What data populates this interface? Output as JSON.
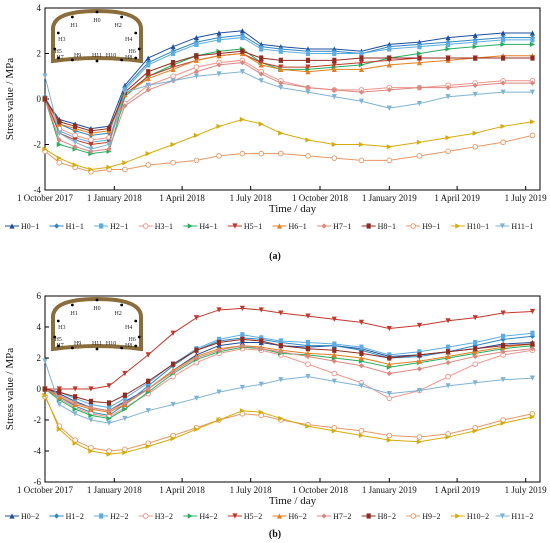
{
  "chart_data": [
    {
      "type": "line",
      "panel": "(a)",
      "xlabel": "Time / day",
      "ylabel": "Stress value / MPa",
      "ylim": [
        -4,
        4
      ],
      "yticks": [
        "4",
        "2",
        "0",
        "-2",
        "-4"
      ],
      "xticks": [
        "1 October 2017",
        "1 January 2018",
        "1 April 2018",
        "1 July 2018",
        "1 October 2018",
        "1 January 2019",
        "1 April 2019",
        "1 July 2019"
      ],
      "x": [
        "2017-10-01",
        "2017-10-20",
        "2017-11-10",
        "2017-12-01",
        "2017-12-25",
        "2018-01-15",
        "2018-02-15",
        "2018-03-20",
        "2018-04-20",
        "2018-05-20",
        "2018-06-20",
        "2018-07-15",
        "2018-08-10",
        "2018-09-15",
        "2018-10-20",
        "2018-11-25",
        "2019-01-01",
        "2019-02-10",
        "2019-03-20",
        "2019-04-25",
        "2019-06-01",
        "2019-07-10"
      ],
      "legend_position": "bottom",
      "inset_labels": [
        "H0",
        "H1",
        "H2",
        "H3",
        "H4",
        "H5",
        "H6",
        "H7",
        "H8",
        "H9",
        "H10",
        "H11"
      ],
      "series": [
        {
          "name": "H0−1",
          "color": "#1f4e9c",
          "values": [
            0.0,
            -0.9,
            -1.1,
            -1.3,
            -1.2,
            0.6,
            1.8,
            2.3,
            2.7,
            2.9,
            3.0,
            2.4,
            2.3,
            2.2,
            2.2,
            2.1,
            2.4,
            2.5,
            2.7,
            2.8,
            2.9,
            2.9
          ]
        },
        {
          "name": "H1−1",
          "color": "#2e86c1",
          "values": [
            0.1,
            -1.1,
            -1.4,
            -1.6,
            -1.5,
            0.5,
            1.6,
            2.1,
            2.5,
            2.7,
            2.8,
            2.3,
            2.2,
            2.1,
            2.1,
            2.0,
            2.3,
            2.4,
            2.5,
            2.6,
            2.7,
            2.7
          ]
        },
        {
          "name": "H2−1",
          "color": "#5dade2",
          "values": [
            0.0,
            -1.4,
            -1.7,
            -1.9,
            -1.8,
            0.4,
            1.5,
            2.0,
            2.4,
            2.6,
            2.7,
            2.2,
            2.1,
            2.0,
            2.0,
            2.0,
            2.2,
            2.3,
            2.4,
            2.5,
            2.6,
            2.6
          ]
        },
        {
          "name": "H3−1",
          "color": "#f1948a",
          "values": [
            0.0,
            -1.3,
            -1.6,
            -1.8,
            -1.7,
            -0.2,
            0.6,
            1.0,
            1.4,
            1.6,
            1.7,
            1.2,
            0.8,
            0.5,
            0.4,
            0.4,
            0.5,
            0.5,
            0.6,
            0.7,
            0.8,
            0.8
          ]
        },
        {
          "name": "H4−1",
          "color": "#27ae60",
          "values": [
            0.0,
            -2.0,
            -2.2,
            -2.4,
            -2.3,
            0.1,
            1.0,
            1.5,
            1.9,
            2.1,
            2.2,
            1.6,
            1.3,
            1.3,
            1.4,
            1.5,
            1.8,
            2.0,
            2.2,
            2.3,
            2.4,
            2.4
          ]
        },
        {
          "name": "H5−1",
          "color": "#c0392b",
          "values": [
            0.0,
            -1.5,
            -1.8,
            -2.0,
            -1.9,
            0.2,
            1.0,
            1.4,
            1.7,
            1.9,
            2.0,
            1.6,
            1.4,
            1.4,
            1.5,
            1.6,
            1.7,
            1.8,
            1.8,
            1.8,
            1.8,
            1.8
          ]
        },
        {
          "name": "H6−1",
          "color": "#e67e22",
          "values": [
            0.0,
            -1.1,
            -1.3,
            -1.5,
            -1.4,
            0.2,
            0.9,
            1.3,
            1.7,
            1.9,
            2.0,
            1.5,
            1.3,
            1.2,
            1.3,
            1.3,
            1.5,
            1.6,
            1.7,
            1.8,
            1.9,
            1.9
          ]
        },
        {
          "name": "H7−1",
          "color": "#d98880",
          "values": [
            0.0,
            -1.8,
            -2.1,
            -2.3,
            -2.2,
            -0.3,
            0.4,
            0.8,
            1.2,
            1.5,
            1.6,
            1.1,
            0.7,
            0.5,
            0.4,
            0.3,
            0.4,
            0.5,
            0.5,
            0.6,
            0.7,
            0.7
          ]
        },
        {
          "name": "H8−1",
          "color": "#922b21",
          "values": [
            0.0,
            -1.0,
            -1.2,
            -1.4,
            -1.3,
            0.3,
            1.2,
            1.6,
            1.9,
            2.0,
            2.1,
            1.8,
            1.7,
            1.7,
            1.7,
            1.8,
            1.8,
            1.8,
            1.8,
            1.8,
            1.8,
            1.8
          ]
        },
        {
          "name": "H9−1",
          "color": "#e59866",
          "values": [
            -2.3,
            -2.8,
            -3.0,
            -3.2,
            -3.1,
            -3.1,
            -2.9,
            -2.8,
            -2.7,
            -2.5,
            -2.4,
            -2.4,
            -2.4,
            -2.5,
            -2.6,
            -2.7,
            -2.7,
            -2.5,
            -2.3,
            -2.1,
            -1.9,
            -1.6
          ]
        },
        {
          "name": "H10−1",
          "color": "#d4ac0d",
          "values": [
            -2.2,
            -2.6,
            -2.9,
            -3.1,
            -3.0,
            -2.8,
            -2.4,
            -2.0,
            -1.6,
            -1.2,
            -0.9,
            -1.1,
            -1.5,
            -1.8,
            -2.0,
            -2.0,
            -2.1,
            -1.9,
            -1.7,
            -1.5,
            -1.2,
            -1.0
          ]
        },
        {
          "name": "H11−1",
          "color": "#7fb3d5",
          "values": [
            1.0,
            -1.5,
            -1.9,
            -2.2,
            -2.0,
            0.3,
            0.6,
            0.8,
            1.0,
            1.1,
            1.2,
            0.8,
            0.5,
            0.3,
            0.1,
            -0.1,
            -0.4,
            -0.2,
            0.1,
            0.2,
            0.3,
            0.3
          ]
        }
      ]
    },
    {
      "type": "line",
      "panel": "(b)",
      "xlabel": "Time / day",
      "ylabel": "Stress value / MPa",
      "ylim": [
        -6,
        6
      ],
      "yticks": [
        "6",
        "4",
        "2",
        "0",
        "-2",
        "-4",
        "-6"
      ],
      "xticks": [
        "1 October 2017",
        "1 January 2018",
        "1 April 2018",
        "1 July 2018",
        "1 October 2018",
        "1 January 2019",
        "1 April 2019",
        "1 July 2019"
      ],
      "x": [
        "2017-10-01",
        "2017-10-20",
        "2017-11-10",
        "2017-12-01",
        "2017-12-25",
        "2018-01-15",
        "2018-02-15",
        "2018-03-20",
        "2018-04-20",
        "2018-05-20",
        "2018-06-20",
        "2018-07-15",
        "2018-08-10",
        "2018-09-15",
        "2018-10-20",
        "2018-11-25",
        "2019-01-01",
        "2019-02-10",
        "2019-03-20",
        "2019-04-25",
        "2019-06-01",
        "2019-07-10"
      ],
      "legend_position": "bottom",
      "inset_labels": [
        "H0",
        "H1",
        "H2",
        "H3",
        "H4",
        "H5",
        "H6",
        "H7",
        "H8",
        "H9",
        "H10",
        "H11"
      ],
      "series": [
        {
          "name": "H0−2",
          "color": "#1f4e9c",
          "values": [
            0.0,
            -0.3,
            -0.8,
            -1.2,
            -1.4,
            -0.8,
            0.0,
            1.2,
            2.2,
            2.8,
            3.0,
            3.0,
            2.8,
            2.7,
            2.8,
            2.6,
            2.1,
            2.2,
            2.4,
            2.6,
            2.9,
            3.0
          ]
        },
        {
          "name": "H1−2",
          "color": "#2e86c1",
          "values": [
            0.0,
            -0.5,
            -1.1,
            -1.5,
            -1.7,
            -1.0,
            0.2,
            1.5,
            2.5,
            3.1,
            3.3,
            3.2,
            3.0,
            2.8,
            2.8,
            2.5,
            2.0,
            2.1,
            2.4,
            2.8,
            3.2,
            3.4
          ]
        },
        {
          "name": "H2−2",
          "color": "#5dade2",
          "values": [
            0.0,
            -0.2,
            -0.6,
            -1.0,
            -1.2,
            -0.6,
            0.4,
            1.6,
            2.6,
            3.2,
            3.5,
            3.3,
            3.1,
            3.0,
            2.9,
            2.7,
            2.2,
            2.4,
            2.7,
            3.0,
            3.4,
            3.6
          ]
        },
        {
          "name": "H3−2",
          "color": "#f1948a",
          "values": [
            0.0,
            -0.6,
            -1.2,
            -1.6,
            -1.8,
            -1.2,
            -0.3,
            0.8,
            1.7,
            2.3,
            2.6,
            2.5,
            2.2,
            1.6,
            1.0,
            0.4,
            -0.6,
            -0.1,
            0.8,
            1.6,
            2.2,
            2.5
          ]
        },
        {
          "name": "H4−2",
          "color": "#27ae60",
          "values": [
            0.0,
            -0.7,
            -1.3,
            -1.7,
            -1.9,
            -1.3,
            -0.2,
            1.0,
            1.9,
            2.4,
            2.7,
            2.6,
            2.3,
            2.2,
            2.0,
            1.8,
            1.4,
            1.7,
            2.0,
            2.3,
            2.6,
            2.8
          ]
        },
        {
          "name": "H5−2",
          "color": "#c0392b",
          "values": [
            0.0,
            0.0,
            0.0,
            0.0,
            0.2,
            1.0,
            2.2,
            3.6,
            4.6,
            5.1,
            5.2,
            5.1,
            4.9,
            4.7,
            4.5,
            4.3,
            3.9,
            4.1,
            4.4,
            4.6,
            4.9,
            5.0
          ]
        },
        {
          "name": "H6−2",
          "color": "#e67e22",
          "values": [
            0.0,
            -0.5,
            -1.0,
            -1.3,
            -1.5,
            -1.0,
            0.0,
            1.2,
            2.1,
            2.6,
            2.8,
            2.7,
            2.5,
            2.3,
            2.2,
            2.0,
            1.6,
            1.8,
            2.1,
            2.4,
            2.7,
            2.9
          ]
        },
        {
          "name": "H7−2",
          "color": "#d98880",
          "values": [
            0.0,
            -0.4,
            -0.9,
            -1.2,
            -1.4,
            -0.9,
            0.0,
            1.1,
            2.0,
            2.5,
            2.8,
            2.6,
            2.4,
            2.1,
            1.8,
            1.5,
            1.0,
            1.3,
            1.7,
            2.1,
            2.4,
            2.6
          ]
        },
        {
          "name": "H8−2",
          "color": "#922b21",
          "values": [
            0.0,
            -0.2,
            -0.5,
            -0.8,
            -0.9,
            -0.4,
            0.5,
            1.6,
            2.5,
            3.0,
            3.2,
            3.1,
            2.8,
            2.6,
            2.5,
            2.3,
            2.0,
            2.2,
            2.4,
            2.6,
            2.8,
            2.9
          ]
        },
        {
          "name": "H9−2",
          "color": "#e59866",
          "values": [
            -0.5,
            -2.4,
            -3.3,
            -3.8,
            -4.0,
            -3.9,
            -3.5,
            -3.0,
            -2.5,
            -2.0,
            -1.6,
            -1.7,
            -2.0,
            -2.3,
            -2.5,
            -2.7,
            -3.0,
            -3.1,
            -2.9,
            -2.5,
            -2.0,
            -1.6
          ]
        },
        {
          "name": "H10−2",
          "color": "#d4ac0d",
          "values": [
            -0.4,
            -2.6,
            -3.5,
            -4.0,
            -4.2,
            -4.1,
            -3.7,
            -3.2,
            -2.6,
            -2.0,
            -1.4,
            -1.5,
            -1.9,
            -2.4,
            -2.7,
            -3.0,
            -3.3,
            -3.4,
            -3.1,
            -2.7,
            -2.2,
            -1.8
          ]
        },
        {
          "name": "H11−2",
          "color": "#7fb3d5",
          "values": [
            1.8,
            -1.0,
            -1.6,
            -2.0,
            -2.2,
            -1.9,
            -1.4,
            -1.0,
            -0.6,
            -0.2,
            0.1,
            0.3,
            0.6,
            0.8,
            0.5,
            0.2,
            -0.3,
            -0.1,
            0.2,
            0.4,
            0.6,
            0.7
          ]
        }
      ]
    }
  ]
}
